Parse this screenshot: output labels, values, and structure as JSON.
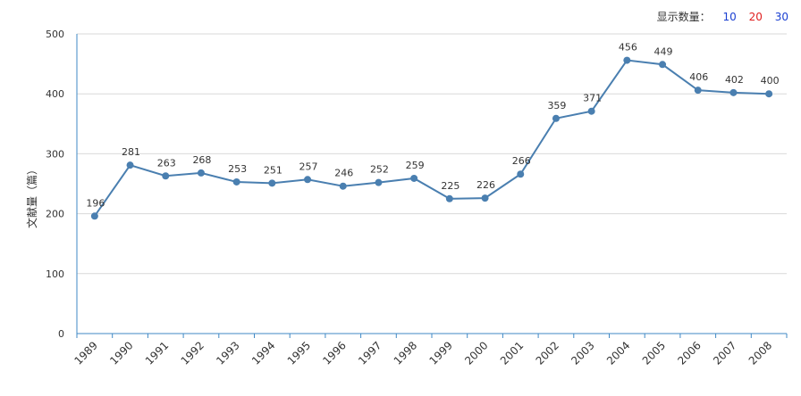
{
  "display_control": {
    "label": "显示数量：",
    "options": [
      {
        "text": "10",
        "color": "#1a3fd1"
      },
      {
        "text": "20",
        "color": "#e02020"
      },
      {
        "text": "30",
        "color": "#1a3fd1"
      }
    ]
  },
  "colors": {
    "line": "#4a7fb0",
    "grid": "#d9d9d9",
    "axis": "#3f88c5",
    "tick_text": "#333333",
    "label_text": "#333333"
  },
  "chart_data": {
    "type": "line",
    "title": "",
    "xlabel": "",
    "ylabel": "文献量（篇）",
    "x": [
      "1989",
      "1990",
      "1991",
      "1992",
      "1993",
      "1994",
      "1995",
      "1996",
      "1997",
      "1998",
      "1999",
      "2000",
      "2001",
      "2002",
      "2003",
      "2004",
      "2005",
      "2006",
      "2007",
      "2008"
    ],
    "series": [
      {
        "values": [
          196,
          281,
          263,
          268,
          253,
          251,
          257,
          246,
          252,
          259,
          225,
          226,
          266,
          359,
          371,
          456,
          449,
          406,
          402,
          400
        ]
      }
    ],
    "ylim": [
      0,
      500
    ],
    "yticks": [
      0,
      100,
      200,
      300,
      400,
      500
    ],
    "grid": true,
    "data_labels": true,
    "legend": "none"
  }
}
